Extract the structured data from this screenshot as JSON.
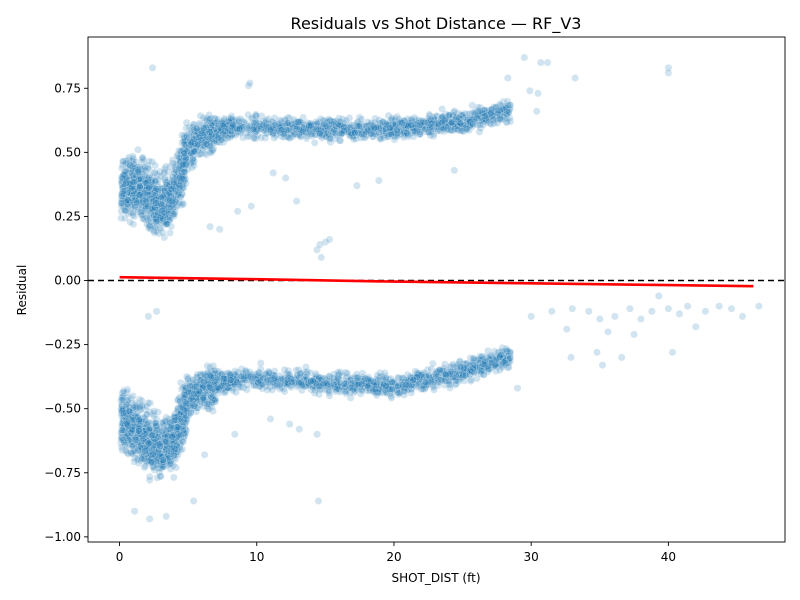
{
  "chart_data": {
    "type": "scatter",
    "title": "Residuals vs Shot Distance — RF_V3",
    "xlabel": "SHOT_DIST (ft)",
    "ylabel": "Residual",
    "xlim": [
      -2.3,
      48.5
    ],
    "ylim": [
      -1.02,
      0.95
    ],
    "x_ticks": [
      0,
      10,
      20,
      30,
      40
    ],
    "y_ticks": [
      -1.0,
      -0.75,
      -0.5,
      -0.25,
      0.0,
      0.25,
      0.5,
      0.75
    ],
    "x_tick_labels": [
      "0",
      "10",
      "20",
      "30",
      "40"
    ],
    "y_tick_labels": [
      "−1.00",
      "−0.75",
      "−0.50",
      "−0.25",
      "0.00",
      "0.25",
      "0.50",
      "0.75"
    ],
    "grid": false,
    "point_color": "#1f77b4",
    "point_opacity": 0.2,
    "trend_color": "#ff0000",
    "reference_line": {
      "y": 0.0,
      "style": "dashed",
      "color": "#000000"
    },
    "series": [
      {
        "role": "trend",
        "x": [
          0,
          10,
          20,
          30,
          40,
          46.2
        ],
        "y": [
          0.013,
          0.005,
          -0.004,
          -0.011,
          -0.018,
          -0.022
        ]
      },
      {
        "role": "residuals-band-positive",
        "x": [
          0.3,
          1,
          2,
          3,
          4,
          5,
          6,
          8,
          10,
          15,
          20,
          25,
          28
        ],
        "y": [
          0.36,
          0.38,
          0.33,
          0.28,
          0.35,
          0.52,
          0.56,
          0.6,
          0.6,
          0.59,
          0.59,
          0.62,
          0.66
        ]
      },
      {
        "role": "residuals-band-negative",
        "x": [
          0.3,
          1,
          2,
          3,
          4,
          5,
          6,
          8,
          10,
          15,
          20,
          25,
          28
        ],
        "y": [
          -0.55,
          -0.58,
          -0.62,
          -0.66,
          -0.62,
          -0.47,
          -0.42,
          -0.39,
          -0.38,
          -0.4,
          -0.41,
          -0.36,
          -0.3
        ]
      }
    ],
    "sparse_points": [
      [
        2.4,
        0.83
      ],
      [
        29.5,
        0.87
      ],
      [
        30.7,
        0.85
      ],
      [
        31.2,
        0.85
      ],
      [
        33.2,
        0.79
      ],
      [
        40.0,
        0.83
      ],
      [
        40.0,
        0.81
      ],
      [
        9.4,
        0.76
      ],
      [
        9.5,
        0.77
      ],
      [
        30.5,
        0.73
      ],
      [
        29.9,
        0.74
      ],
      [
        30.4,
        0.66
      ],
      [
        28.3,
        0.79
      ],
      [
        14.4,
        0.12
      ],
      [
        14.7,
        0.09
      ],
      [
        15.0,
        0.15
      ],
      [
        15.3,
        0.16
      ],
      [
        14.6,
        0.14
      ],
      [
        8.6,
        0.27
      ],
      [
        9.6,
        0.29
      ],
      [
        7.3,
        0.2
      ],
      [
        6.6,
        0.21
      ],
      [
        12.9,
        0.31
      ],
      [
        11.2,
        0.42
      ],
      [
        12.1,
        0.4
      ],
      [
        17.3,
        0.37
      ],
      [
        18.9,
        0.39
      ],
      [
        24.4,
        0.43
      ],
      [
        30.0,
        -0.14
      ],
      [
        31.5,
        -0.12
      ],
      [
        32.6,
        -0.19
      ],
      [
        33.0,
        -0.11
      ],
      [
        34.2,
        -0.12
      ],
      [
        35.0,
        -0.15
      ],
      [
        35.6,
        -0.2
      ],
      [
        36.1,
        -0.14
      ],
      [
        37.2,
        -0.11
      ],
      [
        38.0,
        -0.15
      ],
      [
        38.8,
        -0.12
      ],
      [
        39.3,
        -0.06
      ],
      [
        40.0,
        -0.11
      ],
      [
        40.8,
        -0.13
      ],
      [
        41.4,
        -0.1
      ],
      [
        42.0,
        -0.18
      ],
      [
        42.7,
        -0.12
      ],
      [
        43.7,
        -0.1
      ],
      [
        44.6,
        -0.11
      ],
      [
        45.4,
        -0.14
      ],
      [
        46.6,
        -0.1
      ],
      [
        36.6,
        -0.3
      ],
      [
        37.5,
        -0.21
      ],
      [
        40.3,
        -0.28
      ],
      [
        34.8,
        -0.28
      ],
      [
        35.2,
        -0.33
      ],
      [
        32.9,
        -0.3
      ],
      [
        29.0,
        -0.42
      ],
      [
        2.1,
        -0.14
      ],
      [
        2.7,
        -0.12
      ],
      [
        14.5,
        -0.86
      ],
      [
        13.1,
        -0.58
      ],
      [
        14.4,
        -0.6
      ],
      [
        12.4,
        -0.56
      ],
      [
        11.0,
        -0.54
      ],
      [
        8.4,
        -0.6
      ],
      [
        6.2,
        -0.68
      ],
      [
        5.4,
        -0.86
      ],
      [
        1.1,
        -0.9
      ],
      [
        2.2,
        -0.93
      ],
      [
        3.4,
        -0.92
      ]
    ]
  }
}
